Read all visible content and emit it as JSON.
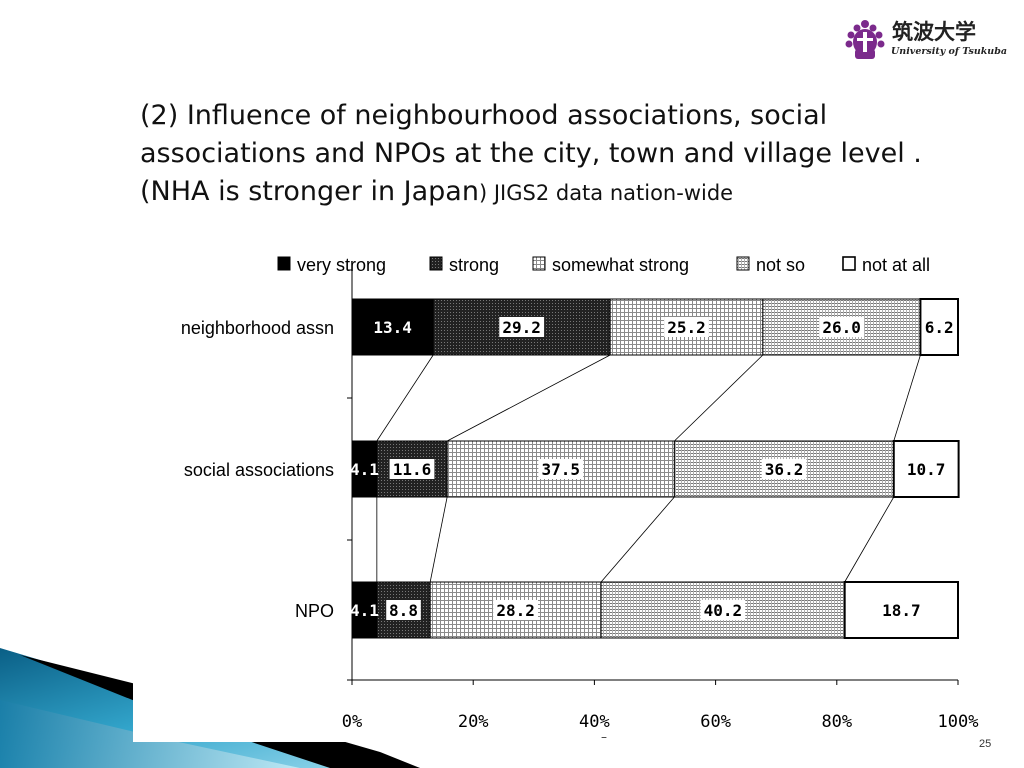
{
  "slide": {
    "title_main": "(2) Influence of neighbourhood associations, social associations and NPOs at the city, town and village level . (NHA is stronger in Japan",
    "title_sub": ") JIGS2 data nation-wide",
    "page_number": "25",
    "stray_mark": "–"
  },
  "logo": {
    "jp_text": "筑波大学",
    "en_text": "University of Tsukuba",
    "color": "#7b2a8c"
  },
  "chart_data": {
    "type": "bar",
    "orientation": "horizontal",
    "stacked": true,
    "percent": true,
    "categories": [
      "neighborhood assn",
      "social associations",
      "NPO"
    ],
    "series": [
      {
        "name": "very strong",
        "values": [
          13.4,
          4.1,
          4.1
        ],
        "pattern": "solid-black"
      },
      {
        "name": "strong",
        "values": [
          29.2,
          11.6,
          8.8
        ],
        "pattern": "dense-dark"
      },
      {
        "name": "somewhat strong",
        "values": [
          25.2,
          37.5,
          28.2
        ],
        "pattern": "grid-light"
      },
      {
        "name": "not so",
        "values": [
          26.0,
          36.2,
          40.2
        ],
        "pattern": "lines-light"
      },
      {
        "name": "not at all",
        "values": [
          6.2,
          10.7,
          18.7
        ],
        "pattern": "white"
      }
    ],
    "x_ticks": [
      "0%",
      "20%",
      "40%",
      "60%",
      "80%",
      "100%"
    ],
    "xlim": [
      0,
      100
    ],
    "legend_position": "top",
    "series_lines": true,
    "grid": false
  }
}
